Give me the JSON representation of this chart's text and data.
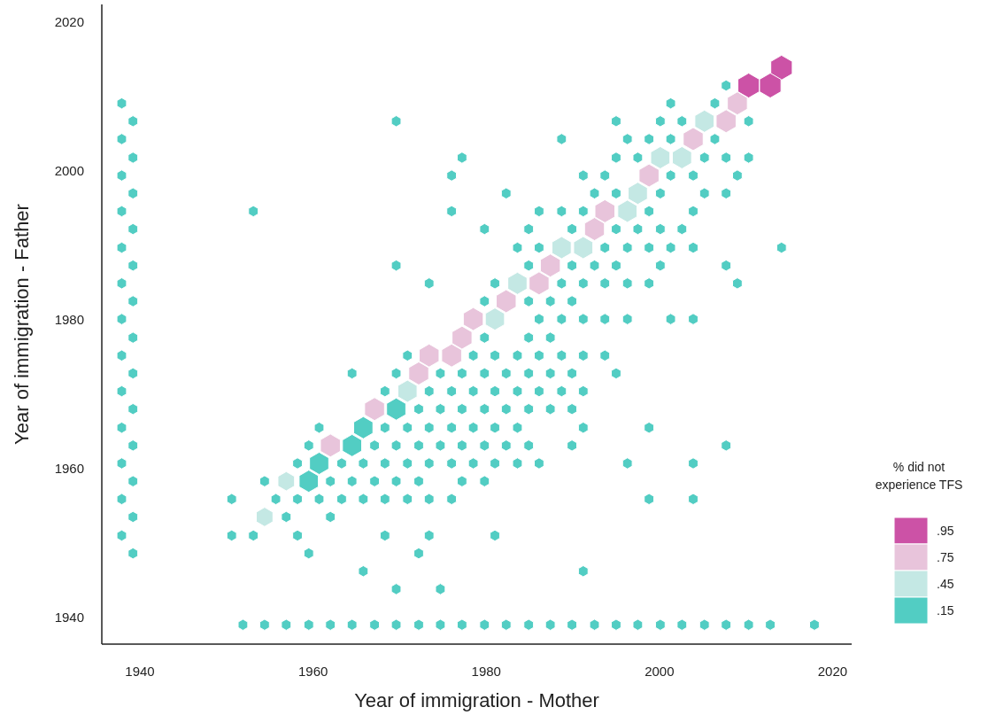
{
  "chart_data": {
    "type": "bubble",
    "xlabel": "Year of immigration - Mother",
    "ylabel": "Year of immigration - Father",
    "legend_title": "% did not experience TFS",
    "legend": "right",
    "grid": false,
    "xlim": [
      1935.6,
      2022.2
    ],
    "ylim": [
      1936.4,
      2022.4
    ],
    "xticks": [
      1940,
      1960,
      1980,
      2000,
      2020
    ],
    "yticks": [
      1940,
      1960,
      1980,
      2000,
      2020
    ],
    "series": [
      {
        "name": ".95",
        "color": "#cc52a6",
        "x": [
          2014.1,
          2010.3,
          2012.8
        ],
        "values": [
          2013.9,
          2011.5,
          2011.5
        ],
        "sizes": [
          1,
          1,
          1
        ]
      },
      {
        "name": ".75",
        "color": "#e8c4db",
        "x": [
          2009.0,
          2007.7,
          2003.9,
          1998.8,
          1993.7,
          1992.5,
          1987.4,
          1986.1,
          1982.3,
          1978.5,
          1977.2,
          1973.4,
          1976.0,
          1972.2,
          1967.1,
          1962.0
        ],
        "values": [
          2009.1,
          2006.7,
          2004.3,
          1999.4,
          1994.6,
          1992.2,
          1987.3,
          1984.9,
          1982.5,
          1980.1,
          1977.6,
          1975.2,
          1975.2,
          1972.8,
          1968.0,
          1963.1
        ],
        "sizes": [
          0.86,
          0.86,
          0.86,
          0.86,
          0.86,
          0.86,
          0.86,
          0.86,
          0.86,
          0.86,
          0.86,
          0.86,
          0.86,
          0.86,
          0.86,
          0.86
        ]
      },
      {
        "name": ".45",
        "color": "#c4e8e4",
        "x": [
          2005.2,
          2000.1,
          2002.6,
          1997.5,
          1996.3,
          1988.7,
          1991.2,
          1983.6,
          1981.0,
          1970.9,
          1956.9,
          1954.4
        ],
        "values": [
          2006.7,
          2001.8,
          2001.8,
          1997.0,
          1994.6,
          1989.7,
          1989.7,
          1984.9,
          1980.1,
          1970.4,
          1958.3,
          1953.5
        ],
        "sizes": [
          0.8,
          0.8,
          0.8,
          0.8,
          0.8,
          0.8,
          0.8,
          0.8,
          0.8,
          0.8,
          0.6,
          0.6
        ]
      },
      {
        "name": ".15",
        "color": "#52cdc3",
        "x": [
          1937.9,
          1939.2,
          1937.9,
          1939.2,
          1937.9,
          1939.2,
          1937.9,
          1939.2,
          1937.9,
          1939.2,
          1937.9,
          1939.2,
          1937.9,
          1939.2,
          1937.9,
          1939.2,
          1937.9,
          1939.2,
          1937.9,
          1939.2,
          1937.9,
          1939.2,
          1937.9,
          1939.2,
          1937.9,
          1939.2,
          2007.7,
          2001.3,
          2006.4,
          1969.6,
          1995.0,
          2000.1,
          2002.6,
          2010.3,
          1988.7,
          1996.3,
          1998.8,
          2001.3,
          2006.4,
          1977.2,
          1995.0,
          1997.5,
          2005.2,
          2007.7,
          2010.3,
          1976.0,
          1991.2,
          1993.7,
          2001.3,
          2003.9,
          2009.0,
          1982.3,
          1992.5,
          1995.0,
          2000.1,
          2005.2,
          2007.7,
          1953.1,
          1976.0,
          1986.1,
          1988.7,
          1991.2,
          1998.8,
          2003.9,
          1979.8,
          1984.9,
          1989.9,
          1995.0,
          1997.5,
          2000.1,
          2002.6,
          1983.6,
          1986.1,
          1993.7,
          1996.3,
          1998.8,
          2001.3,
          2003.9,
          2014.1,
          1969.6,
          1984.9,
          1989.9,
          1992.5,
          1995.0,
          2000.1,
          2007.7,
          1973.4,
          1981.0,
          1988.7,
          1991.2,
          1993.7,
          1996.3,
          1998.8,
          2009.0,
          1979.8,
          1984.9,
          1987.4,
          1989.9,
          1986.1,
          1988.7,
          1991.2,
          1993.7,
          1996.3,
          2001.3,
          2003.9,
          1979.8,
          1984.9,
          1987.4,
          1970.9,
          1978.5,
          1981.0,
          1983.6,
          1986.1,
          1988.7,
          1991.2,
          1993.7,
          1964.5,
          1969.6,
          1974.7,
          1977.2,
          1979.8,
          1982.3,
          1984.9,
          1987.4,
          1989.9,
          1995.0,
          1968.3,
          1973.4,
          1976.0,
          1978.5,
          1981.0,
          1983.6,
          1986.1,
          1988.7,
          1991.2,
          1972.2,
          1974.7,
          1977.2,
          1979.8,
          1982.3,
          1984.9,
          1987.4,
          1989.9,
          1960.7,
          1968.3,
          1970.9,
          1973.4,
          1976.0,
          1978.5,
          1981.0,
          1983.6,
          1991.2,
          1998.8,
          1959.5,
          1967.1,
          1969.6,
          1972.2,
          1974.7,
          1977.2,
          1979.8,
          1982.3,
          1984.9,
          1989.9,
          2007.7,
          1958.2,
          1963.3,
          1965.8,
          1968.3,
          1970.9,
          1973.4,
          1976.0,
          1978.5,
          1981.0,
          1983.6,
          1986.1,
          1996.3,
          2003.9,
          1954.4,
          1962.0,
          1964.5,
          1967.1,
          1969.6,
          1972.2,
          1977.2,
          1979.8,
          1950.6,
          1955.7,
          1958.2,
          1960.7,
          1963.3,
          1965.8,
          1968.3,
          1970.9,
          1973.4,
          1976.0,
          1998.8,
          2003.9,
          1956.9,
          1962.0,
          1950.6,
          1953.1,
          1958.2,
          1968.3,
          1973.4,
          1981.0,
          1959.5,
          1972.2,
          1965.8,
          1991.2,
          1969.6,
          1974.7,
          1951.9,
          1954.4,
          1956.9,
          1959.5,
          1962.0,
          1964.5,
          1967.1,
          1969.6,
          1972.2,
          1974.7,
          1977.2,
          1979.8,
          1982.3,
          1984.9,
          1987.4,
          1989.9,
          1992.5,
          1995.0,
          1997.5,
          2000.1,
          2002.6,
          2005.2,
          2007.7,
          2010.3,
          2012.8,
          2017.9,
          1969.6,
          1965.8,
          1964.5,
          1960.7,
          1959.5
        ],
        "values": [
          2009.1,
          2006.7,
          2004.3,
          2001.8,
          1999.4,
          1997.0,
          1994.6,
          1992.2,
          1989.7,
          1987.3,
          1984.9,
          1982.5,
          1980.1,
          1977.6,
          1975.2,
          1972.8,
          1970.4,
          1968.0,
          1965.5,
          1963.1,
          1960.7,
          1958.3,
          1955.9,
          1953.5,
          1951.0,
          1948.6,
          2011.5,
          2009.1,
          2009.1,
          2006.7,
          2006.7,
          2006.7,
          2006.7,
          2006.7,
          2004.3,
          2004.3,
          2004.3,
          2004.3,
          2004.3,
          2001.8,
          2001.8,
          2001.8,
          2001.8,
          2001.8,
          2001.8,
          1999.4,
          1999.4,
          1999.4,
          1999.4,
          1999.4,
          1999.4,
          1997.0,
          1997.0,
          1997.0,
          1997.0,
          1997.0,
          1997.0,
          1994.6,
          1994.6,
          1994.6,
          1994.6,
          1994.6,
          1994.6,
          1994.6,
          1992.2,
          1992.2,
          1992.2,
          1992.2,
          1992.2,
          1992.2,
          1992.2,
          1989.7,
          1989.7,
          1989.7,
          1989.7,
          1989.7,
          1989.7,
          1989.7,
          1989.7,
          1987.3,
          1987.3,
          1987.3,
          1987.3,
          1987.3,
          1987.3,
          1987.3,
          1984.9,
          1984.9,
          1984.9,
          1984.9,
          1984.9,
          1984.9,
          1984.9,
          1984.9,
          1982.5,
          1982.5,
          1982.5,
          1982.5,
          1980.1,
          1980.1,
          1980.1,
          1980.1,
          1980.1,
          1980.1,
          1980.1,
          1977.6,
          1977.6,
          1977.6,
          1975.2,
          1975.2,
          1975.2,
          1975.2,
          1975.2,
          1975.2,
          1975.2,
          1975.2,
          1972.8,
          1972.8,
          1972.8,
          1972.8,
          1972.8,
          1972.8,
          1972.8,
          1972.8,
          1972.8,
          1972.8,
          1970.4,
          1970.4,
          1970.4,
          1970.4,
          1970.4,
          1970.4,
          1970.4,
          1970.4,
          1970.4,
          1968.0,
          1968.0,
          1968.0,
          1968.0,
          1968.0,
          1968.0,
          1968.0,
          1968.0,
          1965.5,
          1965.5,
          1965.5,
          1965.5,
          1965.5,
          1965.5,
          1965.5,
          1965.5,
          1965.5,
          1965.5,
          1963.1,
          1963.1,
          1963.1,
          1963.1,
          1963.1,
          1963.1,
          1963.1,
          1963.1,
          1963.1,
          1963.1,
          1963.1,
          1960.7,
          1960.7,
          1960.7,
          1960.7,
          1960.7,
          1960.7,
          1960.7,
          1960.7,
          1960.7,
          1960.7,
          1960.7,
          1960.7,
          1960.7,
          1958.3,
          1958.3,
          1958.3,
          1958.3,
          1958.3,
          1958.3,
          1958.3,
          1958.3,
          1955.9,
          1955.9,
          1955.9,
          1955.9,
          1955.9,
          1955.9,
          1955.9,
          1955.9,
          1955.9,
          1955.9,
          1955.9,
          1955.9,
          1953.5,
          1953.5,
          1951.0,
          1951.0,
          1951.0,
          1951.0,
          1951.0,
          1951.0,
          1948.6,
          1948.6,
          1946.2,
          1946.2,
          1943.8,
          1943.8,
          1939.0,
          1939.0,
          1939.0,
          1939.0,
          1939.0,
          1939.0,
          1939.0,
          1939.0,
          1939.0,
          1939.0,
          1939.0,
          1939.0,
          1939.0,
          1939.0,
          1939.0,
          1939.0,
          1939.0,
          1939.0,
          1939.0,
          1939.0,
          1939.0,
          1939.0,
          1939.0,
          1939.0,
          1939.0,
          1939.0,
          1968.0,
          1965.5,
          1963.1,
          1960.7,
          1958.3
        ],
        "sizes": [
          0.2,
          0.2,
          0.2,
          0.2,
          0.2,
          0.2,
          0.2,
          0.2,
          0.2,
          0.2,
          0.2,
          0.2,
          0.2,
          0.2,
          0.2,
          0.2,
          0.2,
          0.2,
          0.2,
          0.2,
          0.2,
          0.2,
          0.2,
          0.2,
          0.2,
          0.2,
          0.2,
          0.2,
          0.2,
          0.2,
          0.2,
          0.2,
          0.2,
          0.2,
          0.2,
          0.2,
          0.2,
          0.2,
          0.2,
          0.2,
          0.2,
          0.2,
          0.2,
          0.2,
          0.2,
          0.2,
          0.2,
          0.2,
          0.2,
          0.2,
          0.2,
          0.2,
          0.2,
          0.2,
          0.2,
          0.2,
          0.2,
          0.2,
          0.2,
          0.2,
          0.2,
          0.2,
          0.2,
          0.2,
          0.2,
          0.2,
          0.2,
          0.2,
          0.2,
          0.2,
          0.2,
          0.2,
          0.2,
          0.2,
          0.2,
          0.2,
          0.2,
          0.2,
          0.2,
          0.2,
          0.2,
          0.2,
          0.2,
          0.2,
          0.2,
          0.2,
          0.2,
          0.2,
          0.2,
          0.2,
          0.2,
          0.2,
          0.2,
          0.2,
          0.2,
          0.2,
          0.2,
          0.2,
          0.2,
          0.2,
          0.2,
          0.2,
          0.2,
          0.2,
          0.2,
          0.2,
          0.2,
          0.2,
          0.2,
          0.2,
          0.2,
          0.2,
          0.2,
          0.2,
          0.2,
          0.2,
          0.2,
          0.2,
          0.2,
          0.2,
          0.2,
          0.2,
          0.2,
          0.2,
          0.2,
          0.2,
          0.2,
          0.2,
          0.2,
          0.2,
          0.2,
          0.2,
          0.2,
          0.2,
          0.2,
          0.2,
          0.2,
          0.2,
          0.2,
          0.2,
          0.2,
          0.2,
          0.2,
          0.2,
          0.2,
          0.2,
          0.2,
          0.2,
          0.2,
          0.2,
          0.2,
          0.2,
          0.2,
          0.2,
          0.2,
          0.2,
          0.2,
          0.2,
          0.2,
          0.2,
          0.2,
          0.2,
          0.2,
          0.2,
          0.2,
          0.2,
          0.2,
          0.2,
          0.2,
          0.2,
          0.2,
          0.2,
          0.2,
          0.2,
          0.2,
          0.2,
          0.2,
          0.2,
          0.2,
          0.2,
          0.2,
          0.2,
          0.2,
          0.2,
          0.2,
          0.2,
          0.2,
          0.2,
          0.2,
          0.2,
          0.2,
          0.2,
          0.2,
          0.2,
          0.2,
          0.2,
          0.2,
          0.2,
          0.2,
          0.2,
          0.2,
          0.2,
          0.2,
          0.2,
          0.2,
          0.2,
          0.2,
          0.2,
          0.2,
          0.2,
          0.2,
          0.2,
          0.2,
          0.2,
          0.2,
          0.2,
          0.2,
          0.2,
          0.2,
          0.2,
          0.2,
          0.2,
          0.2,
          0.2,
          0.2,
          0.2,
          0.2,
          0.2,
          0.2,
          0.2,
          0.2,
          0.2,
          0.2,
          0.2,
          0.2,
          0.2,
          0.2,
          0.8,
          0.8,
          0.8,
          0.8,
          0.8
        ]
      }
    ]
  }
}
